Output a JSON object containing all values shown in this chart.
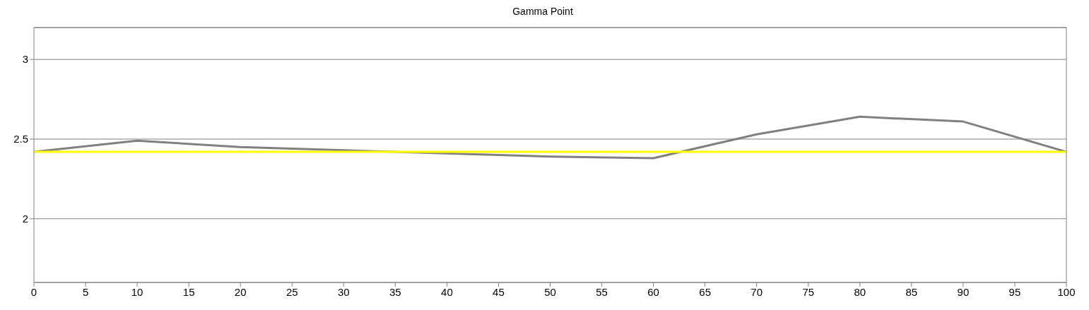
{
  "chart_data": {
    "type": "line",
    "title": "Gamma Point",
    "x": [
      0,
      10,
      20,
      30,
      40,
      50,
      60,
      70,
      80,
      90,
      100
    ],
    "series": [
      {
        "color": "#808080",
        "values": [
          2.42,
          2.49,
          2.45,
          2.43,
          2.41,
          2.39,
          2.38,
          2.53,
          2.64,
          2.61,
          2.42
        ]
      },
      {
        "color": "#ffff00",
        "values": [
          2.42,
          2.42,
          2.42,
          2.42,
          2.42,
          2.42,
          2.42,
          2.42,
          2.42,
          2.42,
          2.42
        ]
      }
    ],
    "xlim": [
      0,
      100
    ],
    "xticks": [
      0,
      5,
      10,
      15,
      20,
      25,
      30,
      35,
      40,
      45,
      50,
      55,
      60,
      65,
      70,
      75,
      80,
      85,
      90,
      95,
      100
    ],
    "ylim": [
      1.6,
      3.2
    ],
    "yticks": [
      2,
      2.5,
      3
    ],
    "grid": "y",
    "legend": false,
    "marker": "none",
    "line_style": "solid"
  }
}
